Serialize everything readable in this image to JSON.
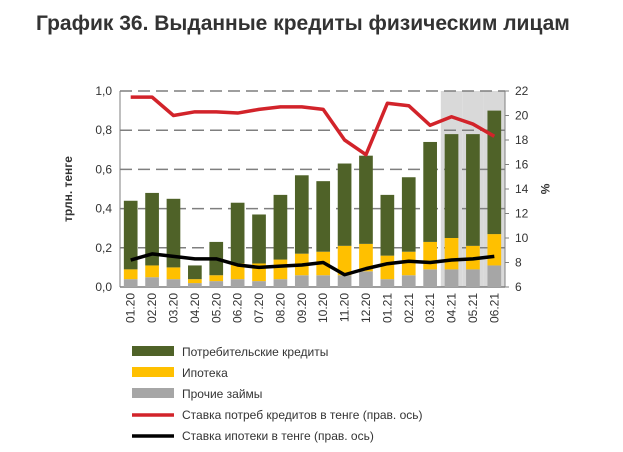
{
  "chart_data": {
    "type": "bar",
    "title": "График 36. Выданные кредиты физическим лицам",
    "ylabel": "трлн. тенге",
    "y2label": "%",
    "ylim": [
      0,
      1.0
    ],
    "y2lim": [
      6,
      22
    ],
    "yticks": [
      "0,0",
      "0,2",
      "0,4",
      "0,6",
      "0,8",
      "1,0"
    ],
    "y2ticks": [
      "6",
      "8",
      "10",
      "12",
      "14",
      "16",
      "18",
      "20",
      "22"
    ],
    "categories": [
      "01.20",
      "02.20",
      "03.20",
      "04.20",
      "05.20",
      "06.20",
      "07.20",
      "08.20",
      "09.20",
      "10.20",
      "11.20",
      "12.20",
      "01.21",
      "02.21",
      "03.21",
      "04.21",
      "05.21",
      "06.21"
    ],
    "highlighted_categories": [
      "04.21",
      "05.21",
      "06.21"
    ],
    "series": [
      {
        "name": "Прочие займы",
        "type": "bar",
        "color": "#a6a6a6",
        "values": [
          0.04,
          0.05,
          0.04,
          0.02,
          0.03,
          0.04,
          0.03,
          0.04,
          0.06,
          0.06,
          0.06,
          0.08,
          0.04,
          0.06,
          0.09,
          0.09,
          0.09,
          0.11
        ]
      },
      {
        "name": "Ипотека",
        "type": "bar",
        "color": "#ffc000",
        "values": [
          0.05,
          0.06,
          0.06,
          0.02,
          0.03,
          0.08,
          0.09,
          0.1,
          0.11,
          0.12,
          0.15,
          0.14,
          0.12,
          0.12,
          0.14,
          0.16,
          0.12,
          0.16
        ]
      },
      {
        "name": "Потребительские кредиты",
        "type": "bar",
        "color": "#4f6228",
        "values": [
          0.35,
          0.37,
          0.35,
          0.07,
          0.17,
          0.31,
          0.25,
          0.33,
          0.4,
          0.36,
          0.42,
          0.45,
          0.31,
          0.38,
          0.51,
          0.53,
          0.57,
          0.63
        ]
      },
      {
        "name": "Ставка потреб кредитов в тенге (прав. ось)",
        "type": "line",
        "axis": "right",
        "color": "#d2232a",
        "values": [
          21.5,
          21.5,
          20.0,
          20.3,
          20.3,
          20.2,
          20.5,
          20.7,
          20.7,
          20.5,
          18.0,
          16.8,
          21.0,
          20.8,
          19.2,
          19.9,
          19.3,
          18.3
        ]
      },
      {
        "name": "Ставка ипотеки в тенге (прав. ось)",
        "type": "line",
        "axis": "right",
        "color": "#000000",
        "values": [
          8.2,
          8.7,
          8.5,
          8.3,
          8.3,
          7.8,
          7.6,
          7.7,
          7.8,
          8.0,
          7.0,
          7.5,
          7.9,
          8.1,
          8.0,
          8.2,
          8.3,
          8.5
        ]
      }
    ],
    "legend_order": [
      2,
      1,
      0,
      3,
      4
    ],
    "legend": "bottom"
  }
}
